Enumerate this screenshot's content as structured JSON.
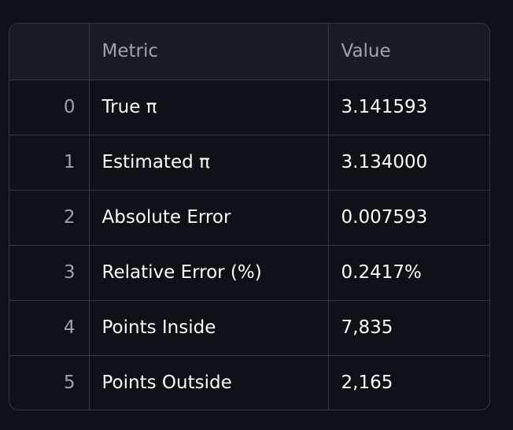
{
  "table": {
    "columns": [
      "",
      "Metric",
      "Value"
    ],
    "rows": [
      {
        "index": "0",
        "metric": "True π",
        "value": "3.141593"
      },
      {
        "index": "1",
        "metric": "Estimated π",
        "value": "3.134000"
      },
      {
        "index": "2",
        "metric": "Absolute Error",
        "value": "0.007593"
      },
      {
        "index": "3",
        "metric": "Relative Error (%)",
        "value": "0.2417%"
      },
      {
        "index": "4",
        "metric": "Points Inside",
        "value": "7,835"
      },
      {
        "index": "5",
        "metric": "Points Outside",
        "value": "2,165"
      }
    ]
  },
  "colors": {
    "background": "#0e1117",
    "header_background": "#1a1c24",
    "border": "#34373f",
    "text": "#fafafa",
    "muted_text": "#9ea2ab"
  }
}
